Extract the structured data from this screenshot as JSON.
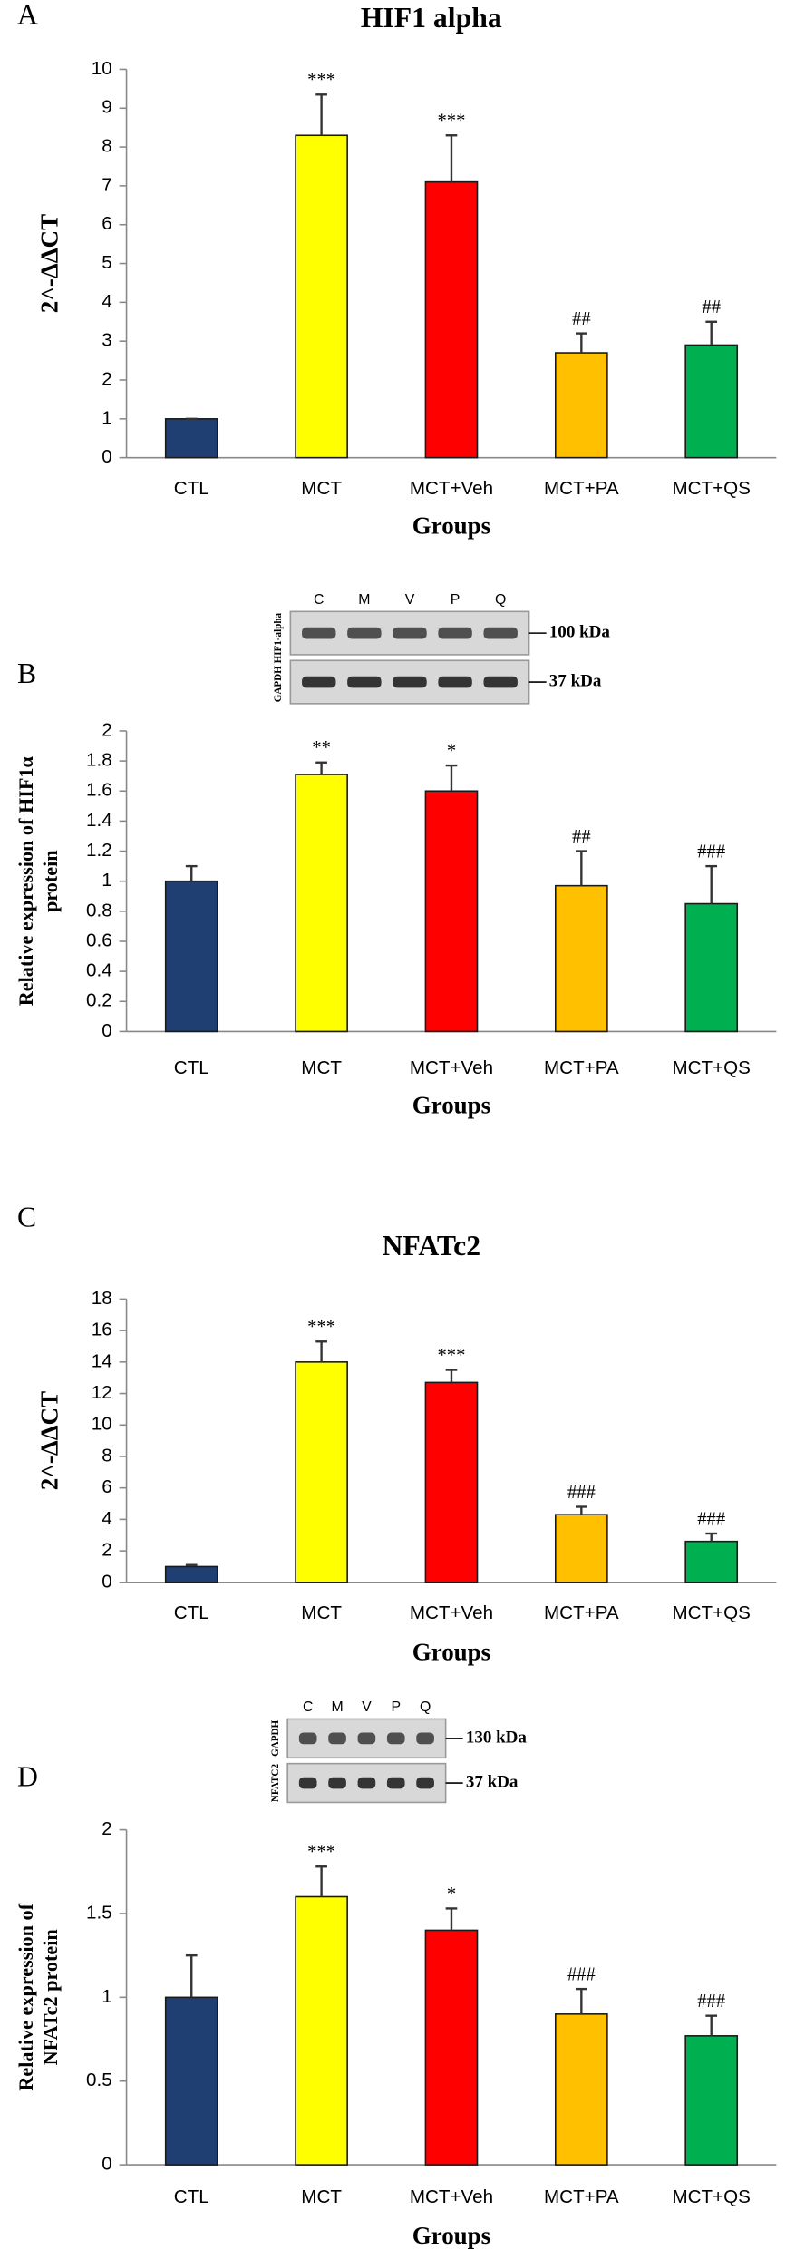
{
  "chart_data": [
    {
      "type": "bar",
      "panel": "A",
      "title": "HIF1 alpha",
      "ylabel": [
        "2^-ΔΔCT"
      ],
      "xlabel": "Groups",
      "categories": [
        "CTL",
        "MCT",
        "MCT+Veh",
        "MCT+PA",
        "MCT+QS"
      ],
      "values": [
        1,
        8.3,
        7.1,
        2.7,
        2.9
      ],
      "errors": [
        0,
        1.05,
        1.2,
        0.5,
        0.6
      ],
      "annotations": [
        null,
        "***",
        "***",
        "##",
        "##"
      ],
      "colors": [
        "#1f3f73",
        "#ffff00",
        "#ff0000",
        "#ffc000",
        "#00b050"
      ],
      "ylim": [
        0,
        10
      ],
      "yticks": [
        0,
        1,
        2,
        3,
        4,
        5,
        6,
        7,
        8,
        9,
        10
      ]
    },
    {
      "type": "bar",
      "panel": "B",
      "ylabel": [
        "Relative expression of HIF1α",
        "protein"
      ],
      "xlabel": "Groups",
      "categories": [
        "CTL",
        "MCT",
        "MCT+Veh",
        "MCT+PA",
        "MCT+QS"
      ],
      "values": [
        1,
        1.71,
        1.6,
        0.97,
        0.85
      ],
      "errors": [
        0.1,
        0.08,
        0.17,
        0.23,
        0.25
      ],
      "annotations": [
        null,
        "**",
        "*",
        "##",
        "###"
      ],
      "colors": [
        "#1f3f73",
        "#ffff00",
        "#ff0000",
        "#ffc000",
        "#00b050"
      ],
      "ylim": [
        0,
        2
      ],
      "yticks": [
        0,
        0.2,
        0.4,
        0.6,
        0.8,
        1,
        1.2,
        1.4,
        1.6,
        1.8,
        2
      ],
      "blot": {
        "lanes": [
          "C",
          "M",
          "V",
          "P",
          "Q"
        ],
        "sizes": [
          "100 kDa",
          "37 kDa"
        ],
        "side_labels": [
          "GAPDH HIF1-alpha"
        ]
      }
    },
    {
      "type": "bar",
      "panel": "C",
      "title": "NFATc2",
      "ylabel": [
        "2^-ΔΔCT"
      ],
      "xlabel": "Groups",
      "categories": [
        "CTL",
        "MCT",
        "MCT+Veh",
        "MCT+PA",
        "MCT+QS"
      ],
      "values": [
        1,
        14,
        12.7,
        4.3,
        2.6
      ],
      "errors": [
        0.1,
        1.3,
        0.8,
        0.5,
        0.5
      ],
      "annotations": [
        null,
        "***",
        "***",
        "###",
        "###"
      ],
      "colors": [
        "#1f3f73",
        "#ffff00",
        "#ff0000",
        "#ffc000",
        "#00b050"
      ],
      "ylim": [
        0,
        18
      ],
      "yticks": [
        0,
        2,
        4,
        6,
        8,
        10,
        12,
        14,
        16,
        18
      ]
    },
    {
      "type": "bar",
      "panel": "D",
      "ylabel": [
        "Relative expression of",
        "NFATc2 protein"
      ],
      "xlabel": "Groups",
      "categories": [
        "CTL",
        "MCT",
        "MCT+Veh",
        "MCT+PA",
        "MCT+QS"
      ],
      "values": [
        1,
        1.6,
        1.4,
        0.9,
        0.77
      ],
      "errors": [
        0.25,
        0.18,
        0.13,
        0.15,
        0.12
      ],
      "annotations": [
        null,
        "***",
        "*",
        "###",
        "###"
      ],
      "colors": [
        "#1f3f73",
        "#ffff00",
        "#ff0000",
        "#ffc000",
        "#00b050"
      ],
      "ylim": [
        0,
        2
      ],
      "yticks": [
        0,
        0.5,
        1,
        1.5,
        2
      ],
      "blot": {
        "lanes": [
          "C",
          "M",
          "V",
          "P",
          "Q"
        ],
        "sizes": [
          "130 kDa",
          "37 kDa"
        ],
        "side_labels": [
          "NFATC2",
          "GAPDH"
        ]
      }
    }
  ]
}
